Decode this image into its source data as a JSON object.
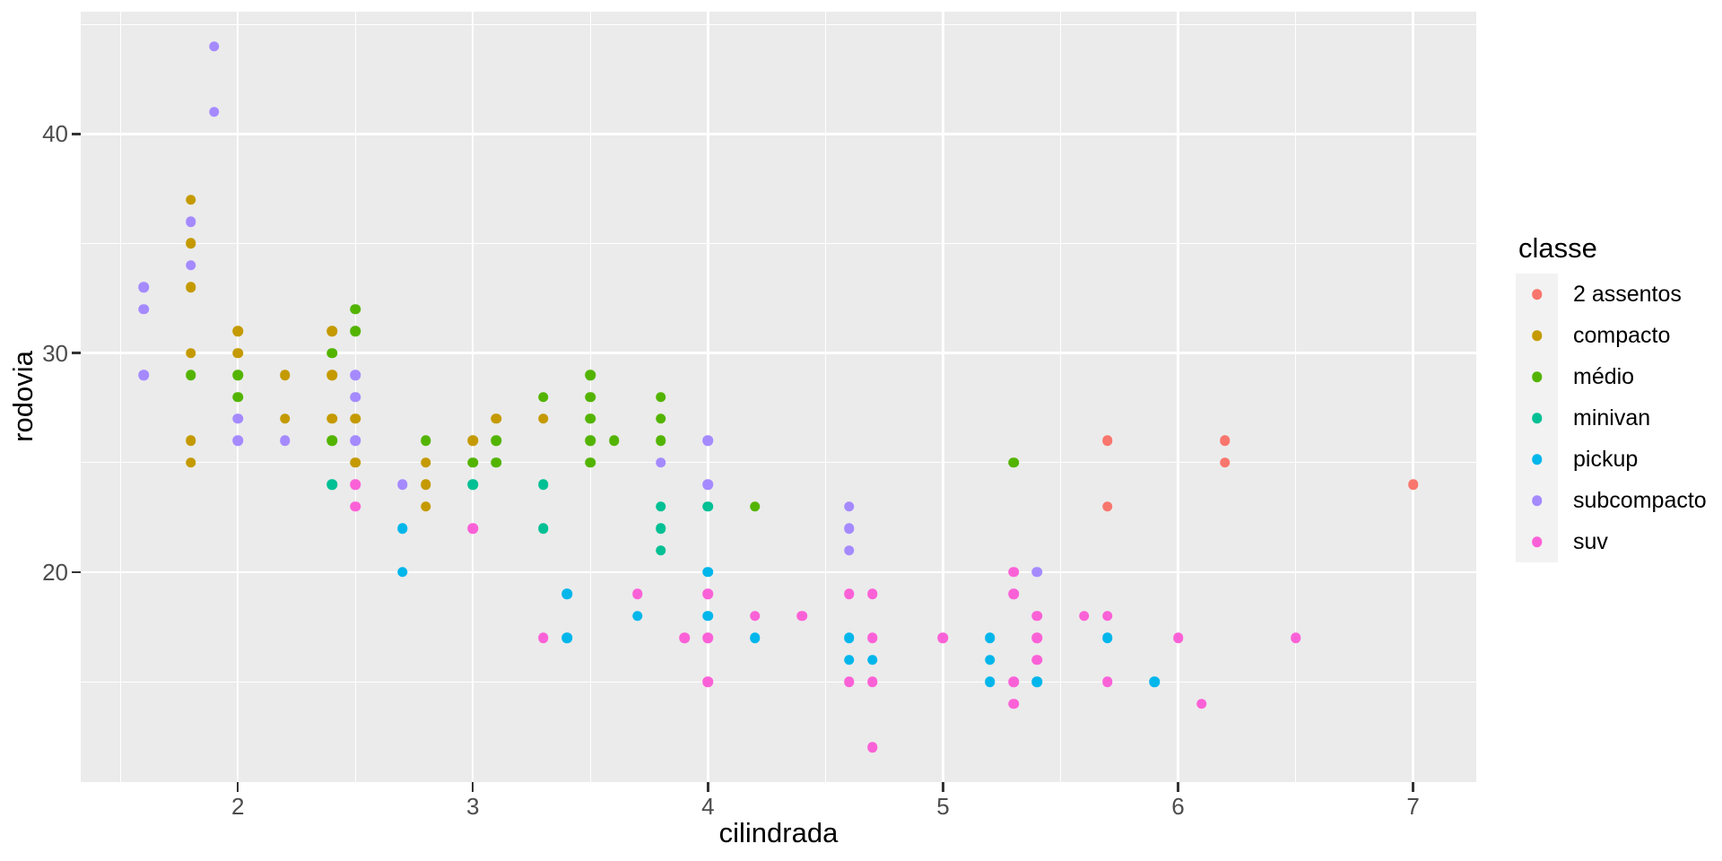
{
  "chart_data": {
    "type": "scatter",
    "title": "",
    "xlabel": "cilindrada",
    "ylabel": "rodovia",
    "xlim": [
      1.3315,
      7.2685
    ],
    "ylim": [
      10.42,
      45.58
    ],
    "x_major_ticks": [
      2,
      3,
      4,
      5,
      6,
      7
    ],
    "y_major_ticks": [
      20,
      30,
      40
    ],
    "x_minor_ticks": [
      1.5,
      2.5,
      3.5,
      4.5,
      5.5,
      6.5
    ],
    "y_minor_ticks": [
      15,
      25,
      35,
      45
    ],
    "grid": true,
    "legend_position": "right",
    "legend_title": "classe",
    "colors": {
      "panel_bg": "#EBEBEB",
      "grid": "#FFFFFF",
      "tick_label": "#4D4D4D",
      "tick_mark": "#333333",
      "legend_key_bg": "#F2F2F2",
      "axis_title": "#000000"
    },
    "series": [
      {
        "name": "2 assentos",
        "color": "#F8766D",
        "points": [
          [
            5.7,
            26
          ],
          [
            5.7,
            23
          ],
          [
            6.2,
            26
          ],
          [
            6.2,
            25
          ],
          [
            7.0,
            24
          ]
        ]
      },
      {
        "name": "compacto",
        "color": "#C49A00",
        "points": [
          [
            1.8,
            37
          ],
          [
            1.8,
            35
          ],
          [
            1.8,
            33
          ],
          [
            1.8,
            30
          ],
          [
            1.8,
            26
          ],
          [
            1.8,
            25
          ],
          [
            2.0,
            31
          ],
          [
            2.0,
            30
          ],
          [
            2.2,
            29
          ],
          [
            2.2,
            27
          ],
          [
            2.4,
            31
          ],
          [
            2.4,
            29
          ],
          [
            2.4,
            27
          ],
          [
            2.5,
            27
          ],
          [
            2.5,
            25
          ],
          [
            2.8,
            25
          ],
          [
            2.8,
            24
          ],
          [
            2.8,
            23
          ],
          [
            3.0,
            26
          ],
          [
            3.1,
            27
          ],
          [
            3.3,
            27
          ]
        ]
      },
      {
        "name": "médio",
        "color": "#53B400",
        "points": [
          [
            1.8,
            29
          ],
          [
            2.0,
            29
          ],
          [
            2.0,
            28
          ],
          [
            2.4,
            30
          ],
          [
            2.4,
            26
          ],
          [
            2.5,
            32
          ],
          [
            2.5,
            31
          ],
          [
            2.8,
            26
          ],
          [
            3.0,
            25
          ],
          [
            3.1,
            26
          ],
          [
            3.1,
            25
          ],
          [
            3.3,
            28
          ],
          [
            3.5,
            29
          ],
          [
            3.5,
            28
          ],
          [
            3.5,
            27
          ],
          [
            3.5,
            26
          ],
          [
            3.5,
            25
          ],
          [
            3.6,
            26
          ],
          [
            3.8,
            28
          ],
          [
            3.8,
            27
          ],
          [
            3.8,
            26
          ],
          [
            4.2,
            23
          ],
          [
            5.3,
            25
          ]
        ]
      },
      {
        "name": "minivan",
        "color": "#00C094",
        "points": [
          [
            2.4,
            24
          ],
          [
            3.0,
            24
          ],
          [
            3.3,
            24
          ],
          [
            3.3,
            22
          ],
          [
            3.8,
            23
          ],
          [
            3.8,
            22
          ],
          [
            3.8,
            21
          ],
          [
            4.0,
            23
          ]
        ]
      },
      {
        "name": "pickup",
        "color": "#00B6EB",
        "points": [
          [
            2.7,
            22
          ],
          [
            2.7,
            20
          ],
          [
            3.4,
            19
          ],
          [
            3.4,
            17
          ],
          [
            3.7,
            18
          ],
          [
            4.0,
            20
          ],
          [
            4.0,
            18
          ],
          [
            4.2,
            17
          ],
          [
            4.6,
            17
          ],
          [
            4.6,
            16
          ],
          [
            4.7,
            16
          ],
          [
            5.2,
            17
          ],
          [
            5.2,
            16
          ],
          [
            5.2,
            15
          ],
          [
            5.4,
            15
          ],
          [
            5.7,
            17
          ],
          [
            5.9,
            15
          ]
        ]
      },
      {
        "name": "subcompacto",
        "color": "#A58AFF",
        "points": [
          [
            1.6,
            33
          ],
          [
            1.6,
            32
          ],
          [
            1.6,
            29
          ],
          [
            1.8,
            36
          ],
          [
            1.8,
            34
          ],
          [
            1.9,
            44
          ],
          [
            1.9,
            41
          ],
          [
            2.0,
            27
          ],
          [
            2.0,
            26
          ],
          [
            2.2,
            26
          ],
          [
            2.5,
            29
          ],
          [
            2.5,
            28
          ],
          [
            2.5,
            26
          ],
          [
            2.7,
            24
          ],
          [
            3.8,
            25
          ],
          [
            4.0,
            26
          ],
          [
            4.0,
            24
          ],
          [
            4.6,
            23
          ],
          [
            4.6,
            22
          ],
          [
            4.6,
            21
          ],
          [
            5.4,
            20
          ]
        ]
      },
      {
        "name": "suv",
        "color": "#FB61D7",
        "points": [
          [
            2.5,
            24
          ],
          [
            2.5,
            23
          ],
          [
            3.0,
            22
          ],
          [
            3.3,
            17
          ],
          [
            3.7,
            19
          ],
          [
            3.9,
            17
          ],
          [
            4.0,
            19
          ],
          [
            4.0,
            17
          ],
          [
            4.0,
            15
          ],
          [
            4.2,
            18
          ],
          [
            4.4,
            18
          ],
          [
            4.6,
            19
          ],
          [
            4.6,
            15
          ],
          [
            4.7,
            19
          ],
          [
            4.7,
            17
          ],
          [
            4.7,
            15
          ],
          [
            4.7,
            12
          ],
          [
            5.0,
            17
          ],
          [
            5.3,
            20
          ],
          [
            5.3,
            19
          ],
          [
            5.3,
            15
          ],
          [
            5.3,
            14
          ],
          [
            5.4,
            18
          ],
          [
            5.4,
            17
          ],
          [
            5.4,
            16
          ],
          [
            5.6,
            18
          ],
          [
            5.7,
            18
          ],
          [
            5.7,
            15
          ],
          [
            6.0,
            17
          ],
          [
            6.1,
            14
          ],
          [
            6.5,
            17
          ]
        ]
      }
    ]
  }
}
